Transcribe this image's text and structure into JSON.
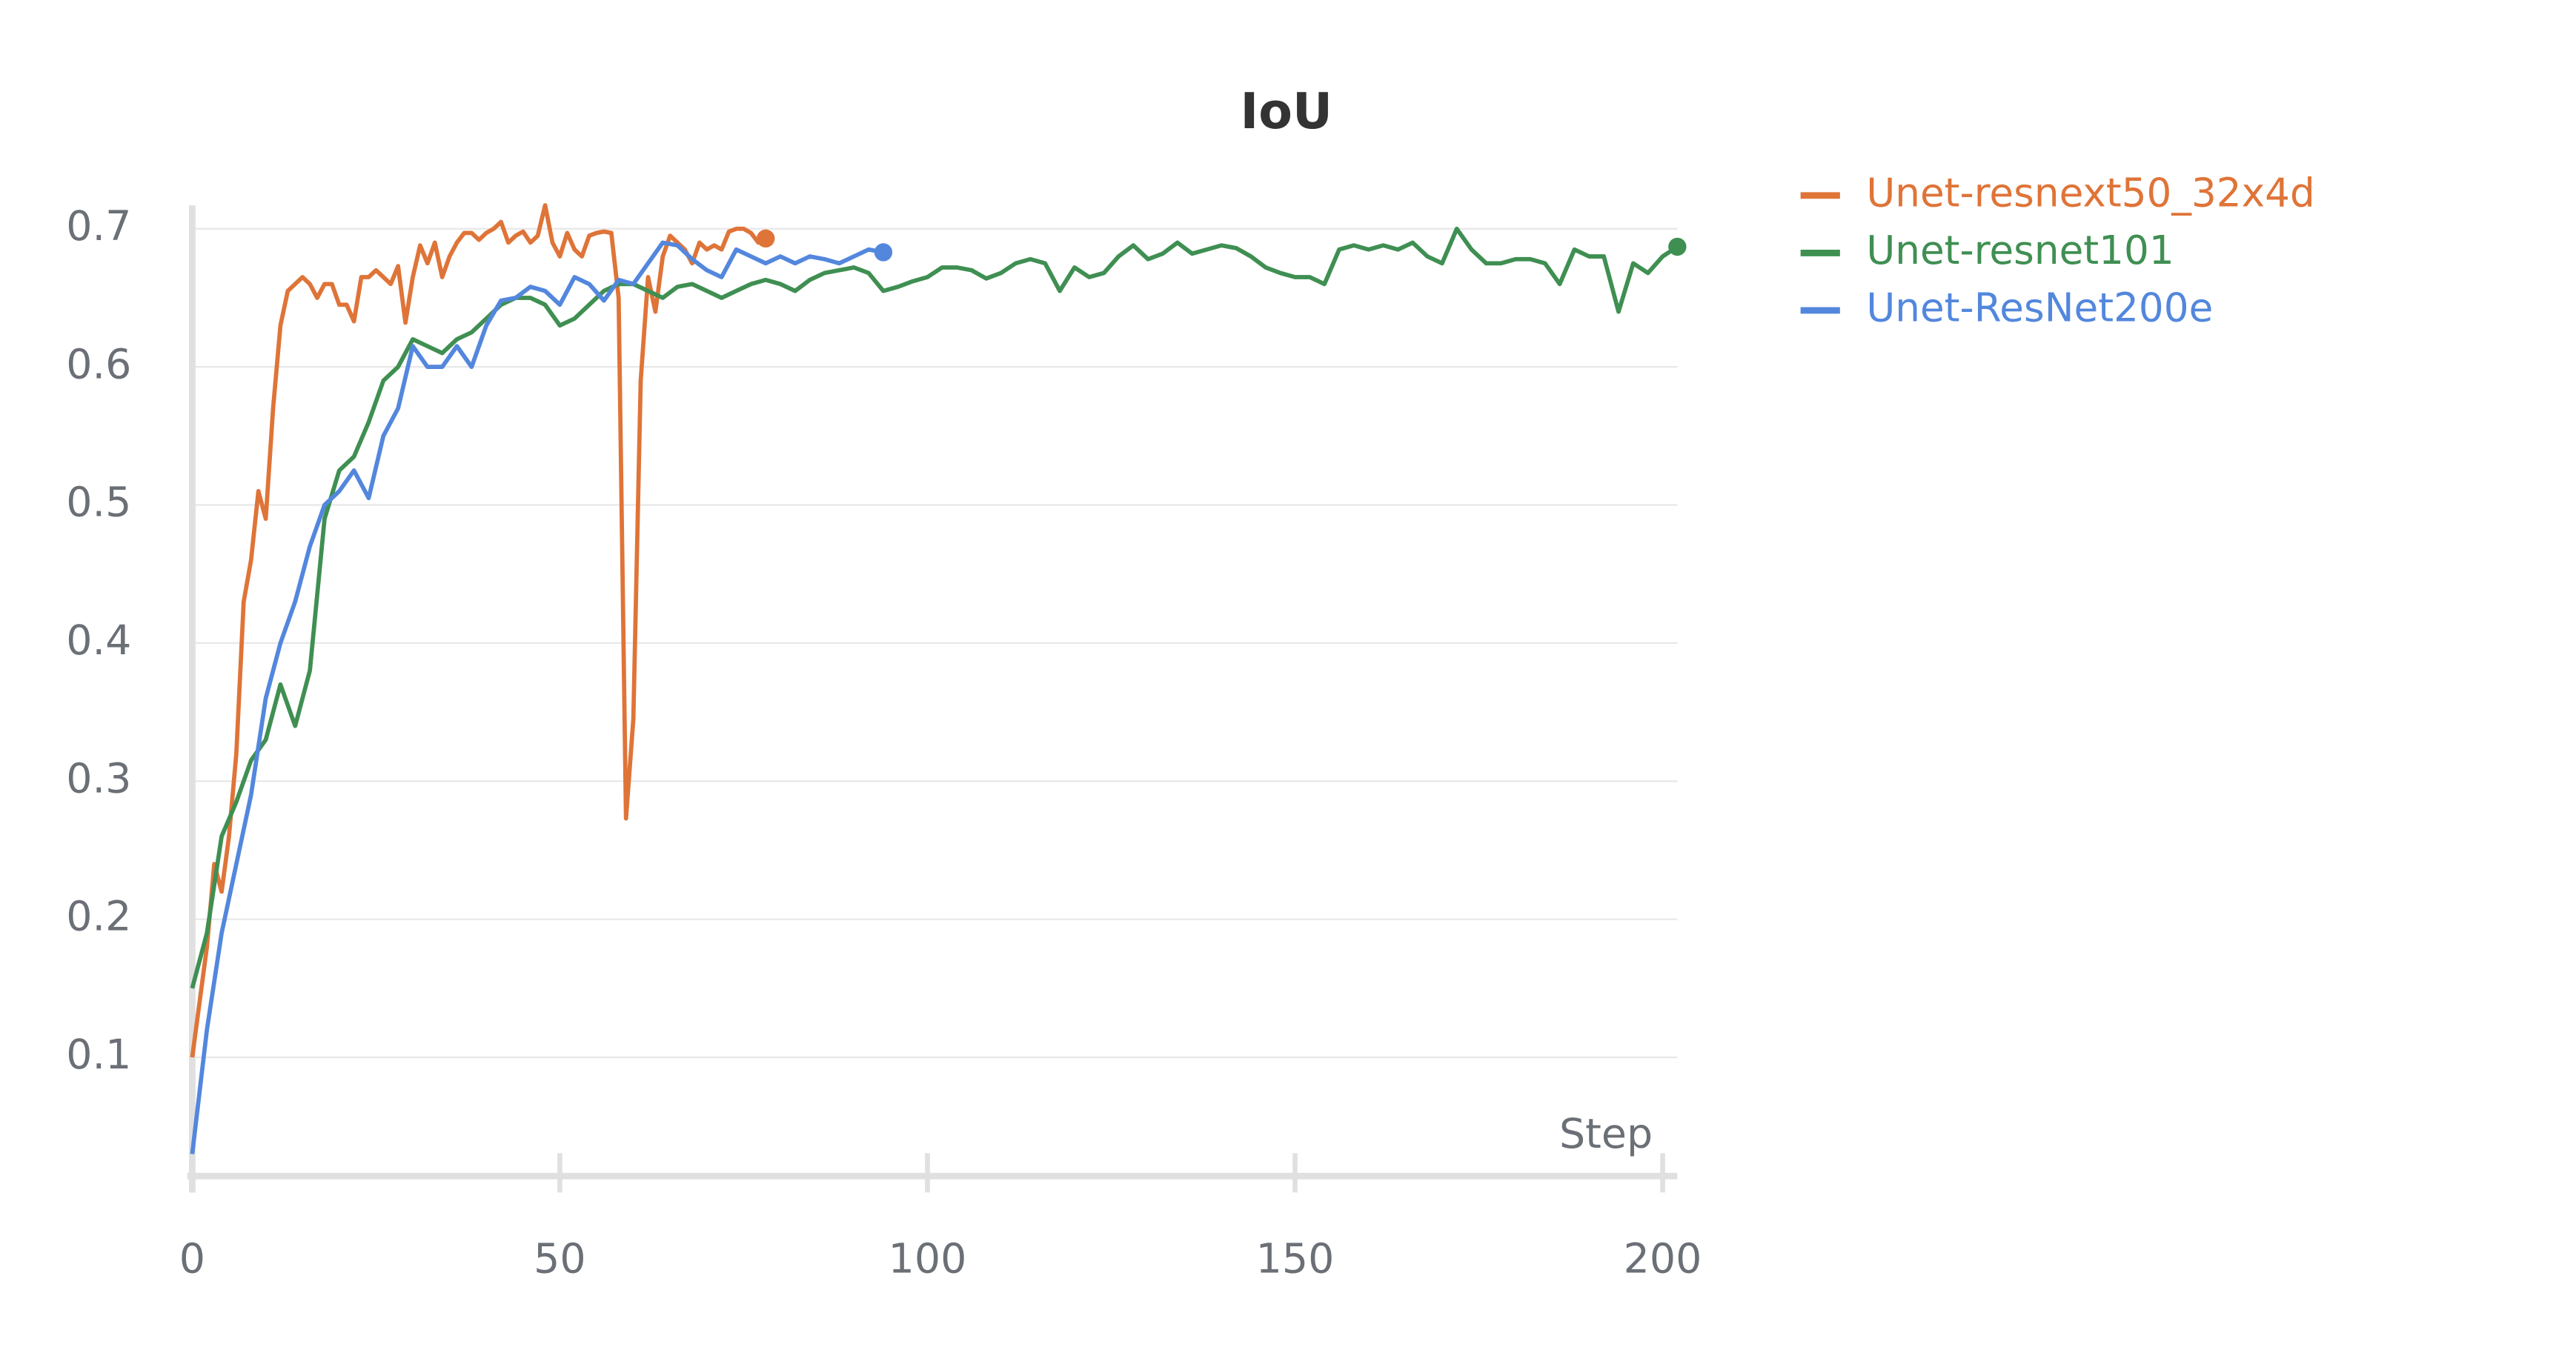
{
  "chart_data": {
    "type": "line",
    "title": "IoU",
    "x_label": "Step",
    "xlim": [
      0,
      202
    ],
    "ylim": [
      0.014,
      0.717
    ],
    "xticks": [
      0,
      50,
      100,
      150,
      200
    ],
    "yticks": [
      0.1,
      0.2,
      0.3,
      0.4,
      0.5,
      0.6,
      0.7
    ],
    "grid": true,
    "legend": "right",
    "series": [
      {
        "name": "Unet-resnext50_32x4d",
        "color": "#df7438",
        "x": [
          0,
          1,
          2,
          3,
          4,
          5,
          6,
          7,
          8,
          9,
          10,
          11,
          12,
          13,
          14,
          15,
          16,
          17,
          18,
          19,
          20,
          21,
          22,
          23,
          24,
          25,
          26,
          27,
          28,
          29,
          30,
          31,
          32,
          33,
          34,
          35,
          36,
          37,
          38,
          39,
          40,
          41,
          42,
          43,
          44,
          45,
          46,
          47,
          48,
          49,
          50,
          51,
          52,
          53,
          54,
          55,
          56,
          57,
          58,
          59,
          60,
          61,
          62,
          63,
          64,
          65,
          66,
          67,
          68,
          69,
          70,
          71,
          72,
          73,
          74,
          75,
          76,
          77,
          78
        ],
        "values": [
          0.1,
          0.14,
          0.18,
          0.24,
          0.22,
          0.26,
          0.32,
          0.43,
          0.46,
          0.51,
          0.49,
          0.57,
          0.63,
          0.655,
          0.66,
          0.665,
          0.66,
          0.65,
          0.66,
          0.66,
          0.645,
          0.645,
          0.633,
          0.665,
          0.665,
          0.67,
          0.665,
          0.66,
          0.673,
          0.632,
          0.665,
          0.688,
          0.675,
          0.69,
          0.665,
          0.68,
          0.69,
          0.697,
          0.697,
          0.692,
          0.697,
          0.7,
          0.705,
          0.69,
          0.695,
          0.698,
          0.69,
          0.695,
          0.717,
          0.69,
          0.68,
          0.697,
          0.685,
          0.68,
          0.695,
          0.697,
          0.698,
          0.697,
          0.65,
          0.273,
          0.345,
          0.59,
          0.665,
          0.64,
          0.68,
          0.695,
          0.69,
          0.685,
          0.675,
          0.69,
          0.685,
          0.688,
          0.685,
          0.698,
          0.7,
          0.7,
          0.697,
          0.69,
          0.693
        ]
      },
      {
        "name": "Unet-resnet101",
        "color": "#3f8f52",
        "x": [
          0,
          2,
          4,
          6,
          8,
          10,
          12,
          14,
          16,
          18,
          20,
          22,
          24,
          26,
          28,
          30,
          32,
          34,
          36,
          38,
          40,
          42,
          44,
          46,
          48,
          50,
          52,
          54,
          56,
          58,
          60,
          62,
          64,
          66,
          68,
          70,
          72,
          74,
          76,
          78,
          80,
          82,
          84,
          86,
          88,
          90,
          92,
          94,
          96,
          98,
          100,
          102,
          104,
          106,
          108,
          110,
          112,
          114,
          116,
          118,
          120,
          122,
          124,
          126,
          128,
          130,
          132,
          134,
          136,
          138,
          140,
          142,
          144,
          146,
          148,
          150,
          152,
          154,
          156,
          158,
          160,
          162,
          164,
          166,
          168,
          170,
          172,
          174,
          176,
          178,
          180,
          182,
          184,
          186,
          188,
          190,
          192,
          194,
          196,
          198,
          200,
          202
        ],
        "values": [
          0.15,
          0.19,
          0.26,
          0.285,
          0.315,
          0.33,
          0.37,
          0.34,
          0.38,
          0.49,
          0.525,
          0.535,
          0.56,
          0.59,
          0.6,
          0.62,
          0.615,
          0.61,
          0.62,
          0.625,
          0.635,
          0.645,
          0.65,
          0.65,
          0.645,
          0.63,
          0.635,
          0.645,
          0.655,
          0.66,
          0.66,
          0.655,
          0.65,
          0.658,
          0.66,
          0.655,
          0.65,
          0.655,
          0.66,
          0.663,
          0.66,
          0.655,
          0.663,
          0.668,
          0.67,
          0.672,
          0.668,
          0.655,
          0.658,
          0.662,
          0.665,
          0.672,
          0.672,
          0.67,
          0.664,
          0.668,
          0.675,
          0.678,
          0.675,
          0.655,
          0.672,
          0.665,
          0.668,
          0.68,
          0.688,
          0.678,
          0.682,
          0.69,
          0.682,
          0.685,
          0.688,
          0.686,
          0.68,
          0.672,
          0.668,
          0.665,
          0.665,
          0.66,
          0.685,
          0.688,
          0.685,
          0.688,
          0.685,
          0.69,
          0.68,
          0.675,
          0.7,
          0.685,
          0.675,
          0.675,
          0.678,
          0.678,
          0.675,
          0.66,
          0.685,
          0.68,
          0.68,
          0.64,
          0.675,
          0.668,
          0.68,
          0.687
        ]
      },
      {
        "name": "Unet-ResNet200e",
        "color": "#5387dd",
        "x": [
          0,
          2,
          4,
          6,
          8,
          10,
          12,
          14,
          16,
          18,
          20,
          22,
          24,
          26,
          28,
          30,
          32,
          34,
          36,
          38,
          40,
          42,
          44,
          46,
          48,
          50,
          52,
          54,
          56,
          58,
          60,
          62,
          64,
          66,
          68,
          70,
          72,
          74,
          76,
          78,
          80,
          82,
          84,
          86,
          88,
          90,
          92,
          94
        ],
        "values": [
          0.03,
          0.12,
          0.19,
          0.24,
          0.29,
          0.36,
          0.4,
          0.43,
          0.47,
          0.5,
          0.51,
          0.525,
          0.505,
          0.55,
          0.57,
          0.615,
          0.6,
          0.6,
          0.615,
          0.6,
          0.63,
          0.648,
          0.65,
          0.658,
          0.655,
          0.645,
          0.665,
          0.66,
          0.648,
          0.663,
          0.66,
          0.675,
          0.69,
          0.688,
          0.678,
          0.67,
          0.665,
          0.685,
          0.68,
          0.675,
          0.68,
          0.675,
          0.68,
          0.678,
          0.675,
          0.68,
          0.685,
          0.683
        ]
      }
    ]
  }
}
